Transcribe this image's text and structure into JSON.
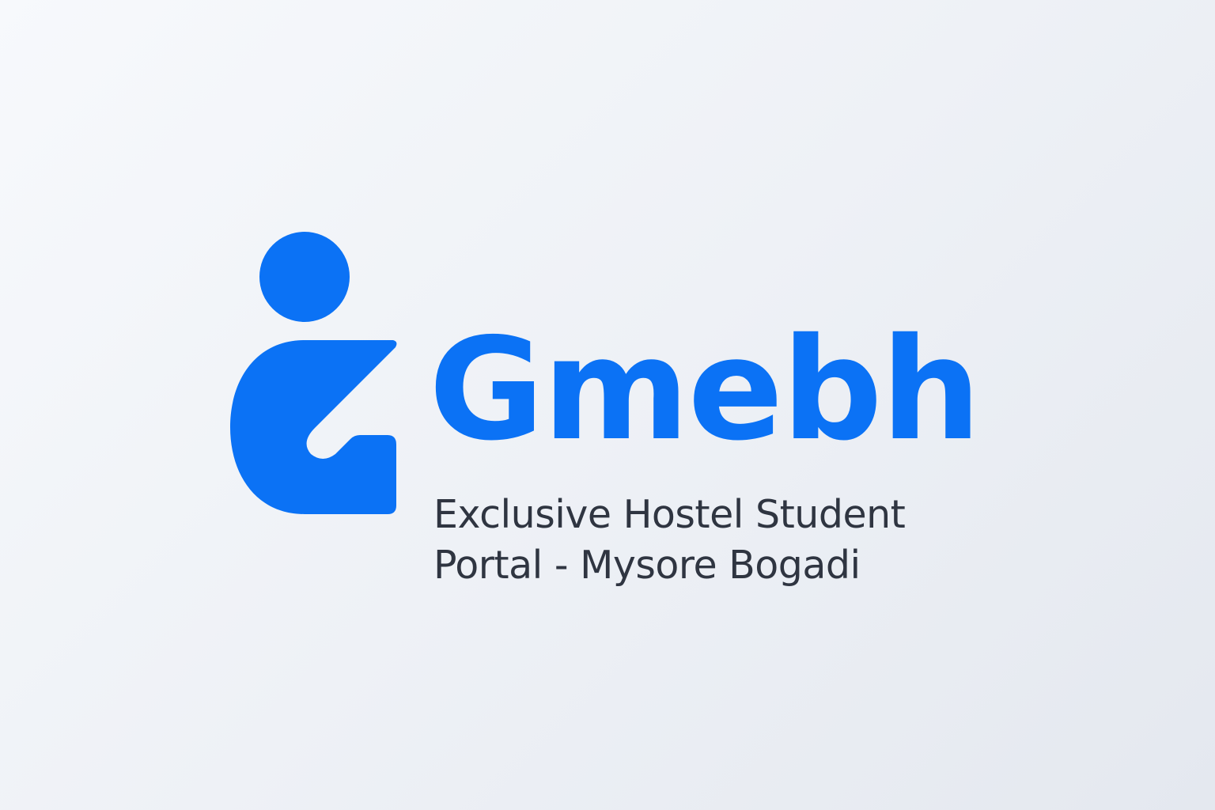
{
  "brand": {
    "name": "Gmebh",
    "tagline_line1": "Exclusive Hostel Student",
    "tagline_line2": "Portal - Mysore Bogadi",
    "icon": "person-logo-icon"
  },
  "colors": {
    "brand_blue": "#0b72f5",
    "text_dark": "#2f3541",
    "background": "#eef1f6"
  }
}
